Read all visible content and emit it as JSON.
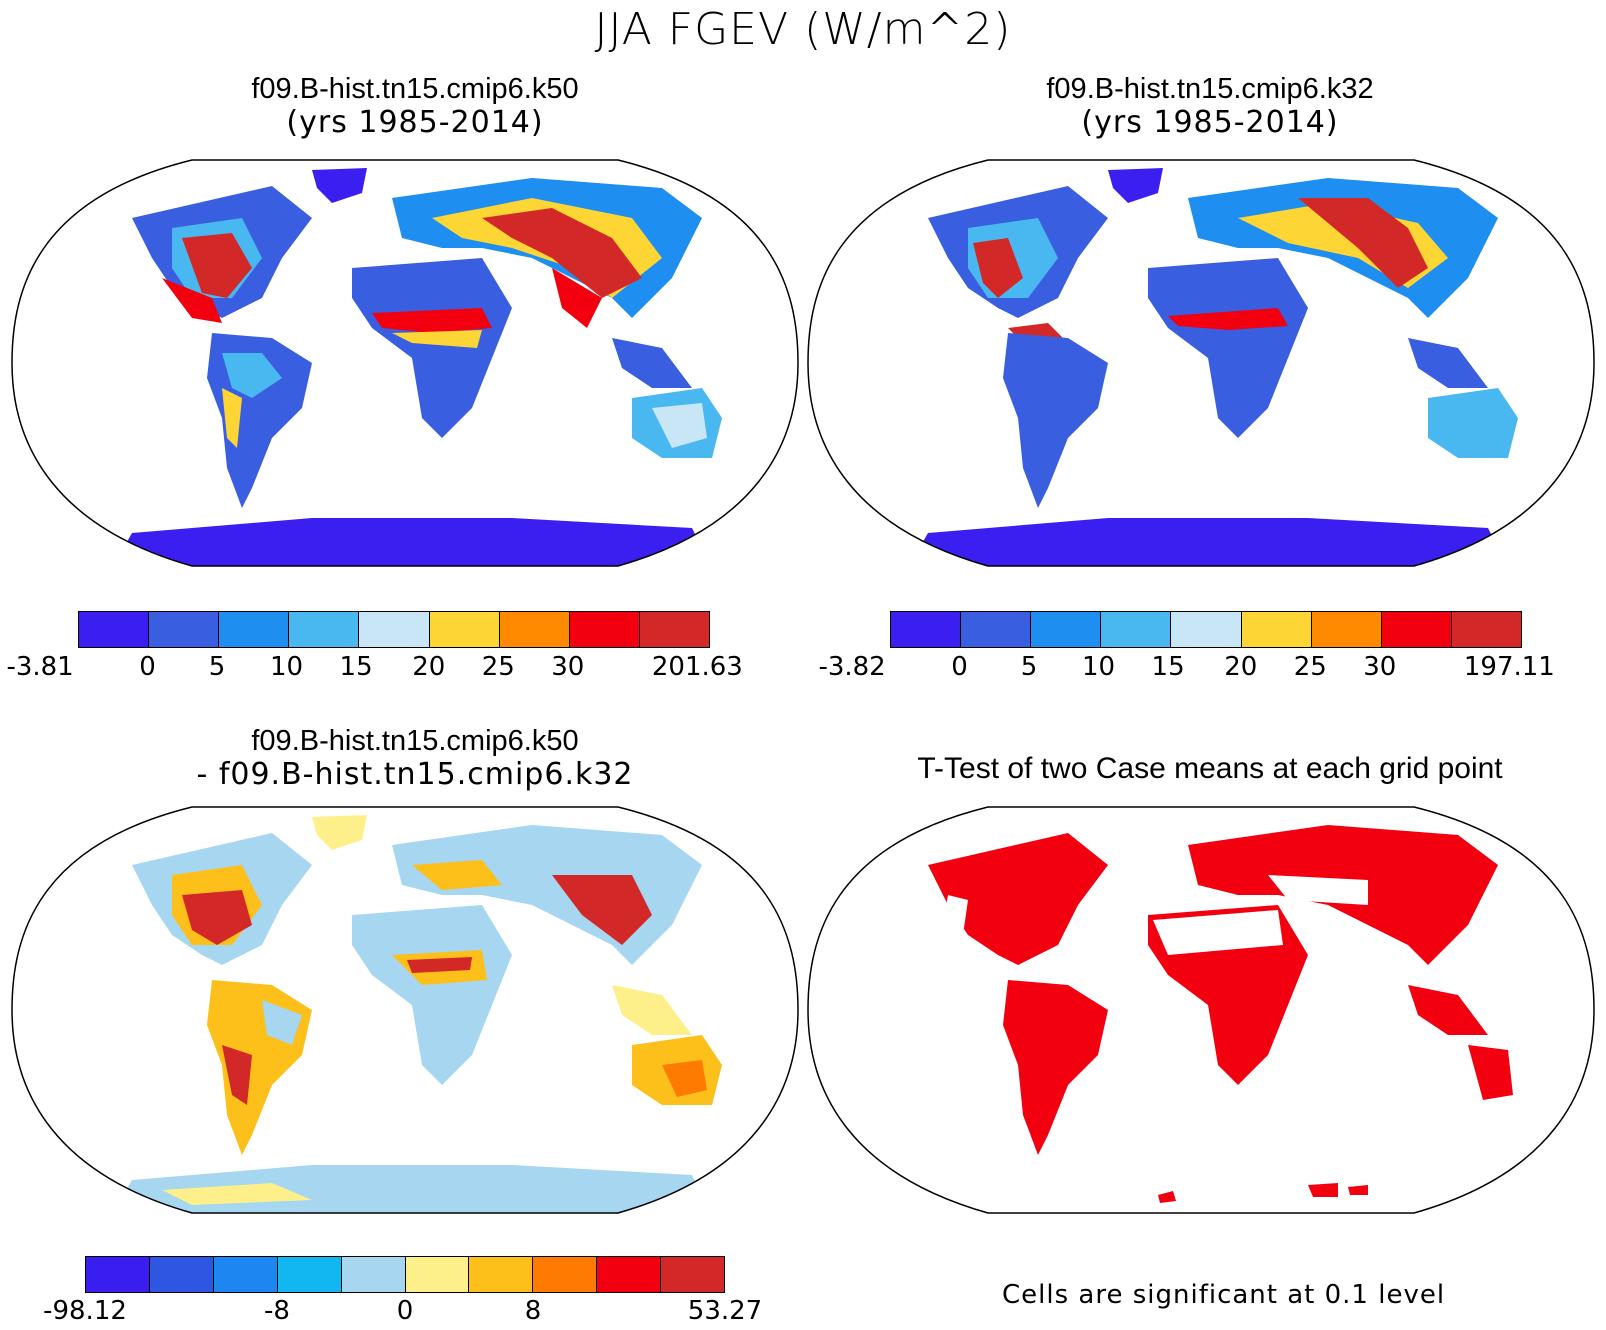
{
  "figure": {
    "main_title": "JJA FGEV (W/m^2)"
  },
  "panels": {
    "top_left": {
      "title_line1": "f09.B-hist.tn15.cmip6.k50",
      "title_line2": "(yrs 1985-2014)",
      "colorbar": {
        "colors": [
          "#3b1ff0",
          "#3a5ee0",
          "#1e8ef0",
          "#4ab8f0",
          "#c8e6f6",
          "#fdd535",
          "#ff8a00",
          "#f2000f",
          "#d22828"
        ],
        "labels": [
          "-3.81",
          "0",
          "5",
          "10",
          "15",
          "20",
          "25",
          "30",
          "201.63"
        ]
      }
    },
    "top_right": {
      "title_line1": "f09.B-hist.tn15.cmip6.k32",
      "title_line2": "(yrs 1985-2014)",
      "colorbar": {
        "colors": [
          "#3b1ff0",
          "#3a5ee0",
          "#1e8ef0",
          "#4ab8f0",
          "#c8e6f6",
          "#fdd535",
          "#ff8a00",
          "#f2000f",
          "#d22828"
        ],
        "labels": [
          "-3.82",
          "0",
          "5",
          "10",
          "15",
          "20",
          "25",
          "30",
          "197.11"
        ]
      }
    },
    "bottom_left": {
      "title_line1": "f09.B-hist.tn15.cmip6.k50",
      "title_line2": "- f09.B-hist.tn15.cmip6.k32",
      "colorbar": {
        "colors": [
          "#3a1ef0",
          "#2e56e0",
          "#1e86f0",
          "#12b6f0",
          "#a6d6f0",
          "#fdf08a",
          "#fdbf1a",
          "#ff7a00",
          "#f2000f",
          "#d22828"
        ],
        "labels": [
          "-98.12",
          "-8",
          "0",
          "8",
          "53.27"
        ]
      }
    },
    "bottom_right": {
      "title": "T-Test of two Case means at each grid point",
      "note": "Cells are significant at 0.1 level",
      "significant_color": "#f2000f"
    }
  }
}
